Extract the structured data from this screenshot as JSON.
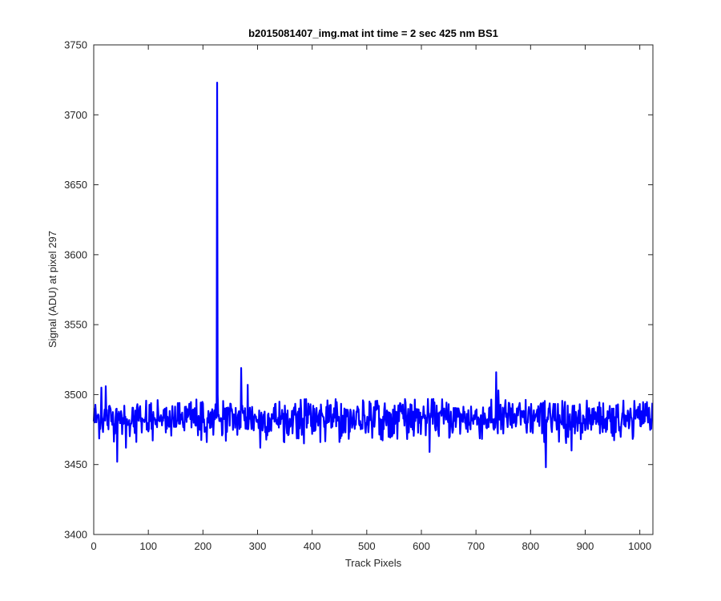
{
  "chart_data": {
    "type": "line",
    "title": "b2015081407_img.mat int time = 2 sec  425 nm BS1",
    "xlabel": "Track Pixels",
    "ylabel": "Signal (ADU) at pixel 297",
    "xlim": [
      0,
      1024
    ],
    "ylim": [
      3400,
      3750
    ],
    "xticks": [
      0,
      100,
      200,
      300,
      400,
      500,
      600,
      700,
      800,
      900,
      1000
    ],
    "yticks": [
      3400,
      3450,
      3500,
      3550,
      3600,
      3650,
      3700,
      3750
    ],
    "grid": false,
    "series": [
      {
        "color": "#0000ff",
        "baseline": 3483,
        "noise_amplitude": 7,
        "num_points": 1024,
        "features": [
          {
            "x": 14,
            "y": 3505
          },
          {
            "x": 22,
            "y": 3506
          },
          {
            "x": 43,
            "y": 3452
          },
          {
            "x": 59,
            "y": 3462
          },
          {
            "x": 226,
            "y": 3723
          },
          {
            "x": 227,
            "y": 3500
          },
          {
            "x": 270,
            "y": 3519
          },
          {
            "x": 282,
            "y": 3507
          },
          {
            "x": 305,
            "y": 3462
          },
          {
            "x": 615,
            "y": 3459
          },
          {
            "x": 737,
            "y": 3516
          },
          {
            "x": 741,
            "y": 3503
          },
          {
            "x": 828,
            "y": 3448
          },
          {
            "x": 875,
            "y": 3460
          }
        ]
      }
    ]
  }
}
